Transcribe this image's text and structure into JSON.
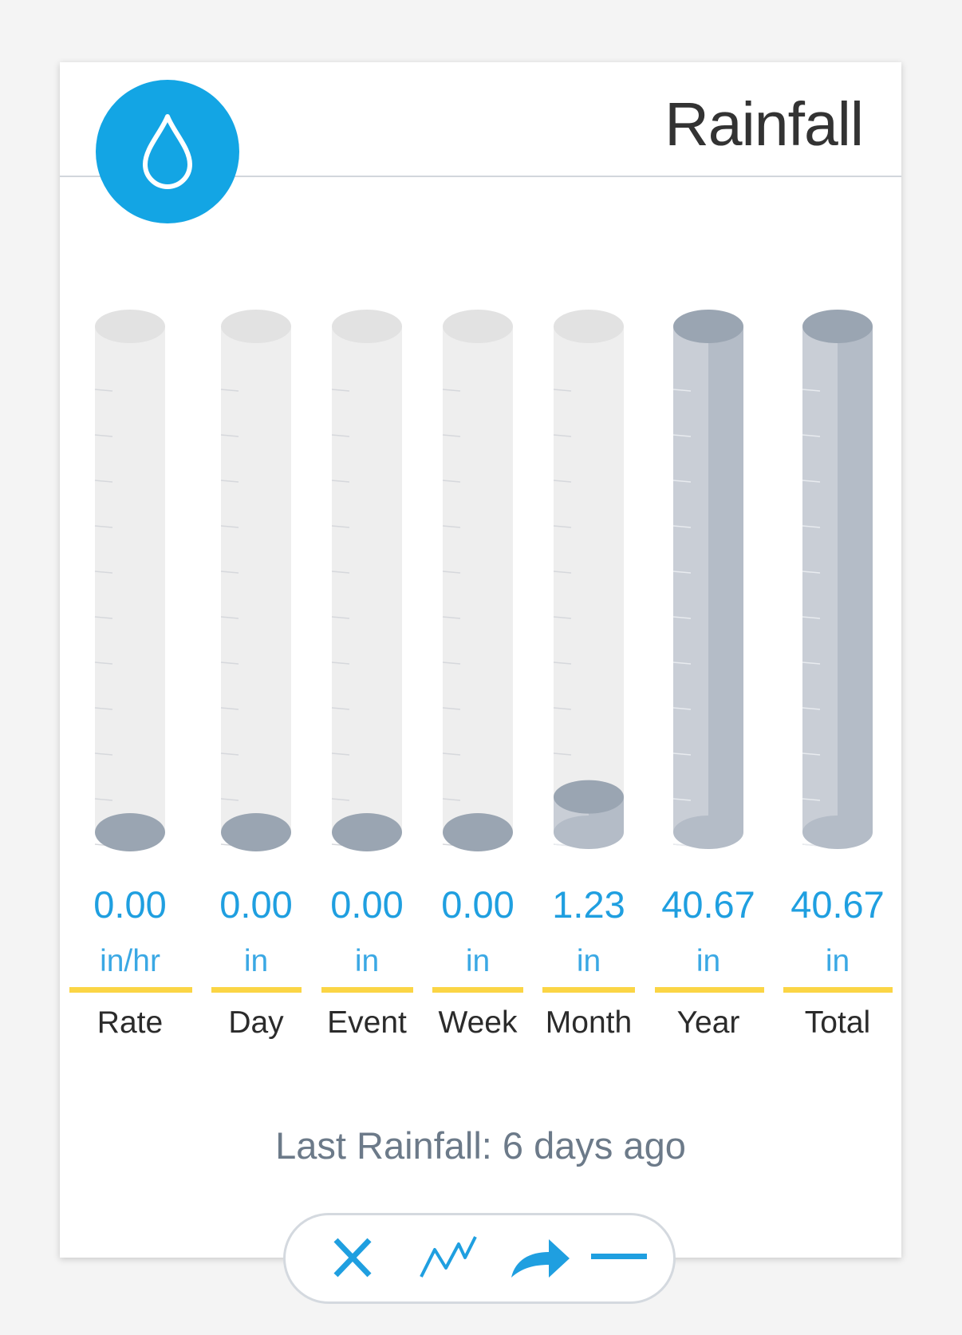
{
  "widget": {
    "title": "Rainfall",
    "icon": "water-drop-icon",
    "accent_color": "#13a5e4",
    "fill_color": "#9aa5b2"
  },
  "chart_data": {
    "type": "bar",
    "categories": [
      "Rate",
      "Day",
      "Event",
      "Week",
      "Month",
      "Year",
      "Total"
    ],
    "values": [
      0.0,
      0.0,
      0.0,
      0.0,
      1.23,
      40.67,
      40.67
    ],
    "units": [
      "in/hr",
      "in",
      "in",
      "in",
      "in",
      "in",
      "in"
    ],
    "value_labels": [
      "0.00",
      "0.00",
      "0.00",
      "0.00",
      "1.23",
      "40.67",
      "40.67"
    ],
    "fill_levels": [
      0,
      0,
      0,
      0,
      0.07,
      1,
      1
    ]
  },
  "footer": {
    "last_rainfall": "Last Rainfall: 6 days ago"
  },
  "toolbar": {
    "buttons": [
      "close-icon",
      "trend-chart-icon",
      "share-arrow-icon",
      "minimize-icon"
    ]
  }
}
